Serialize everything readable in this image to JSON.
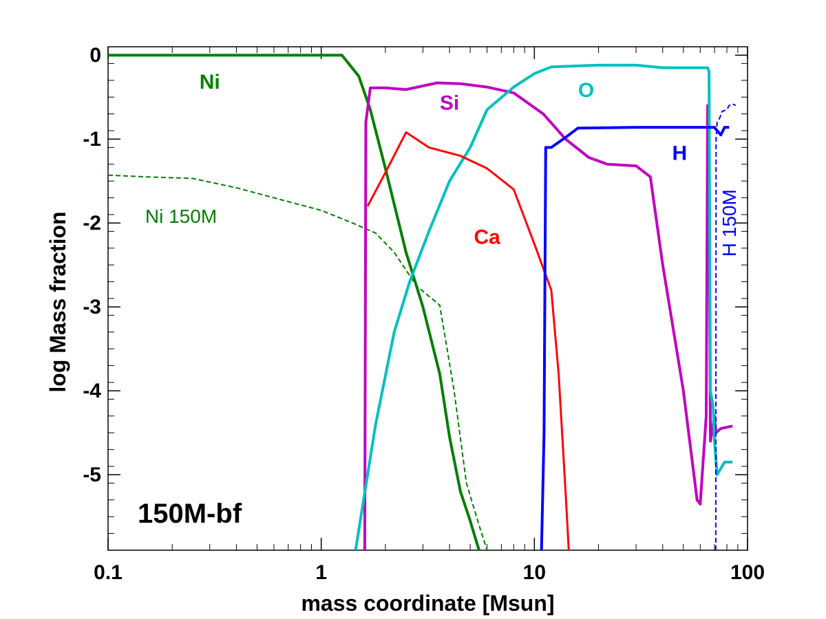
{
  "chart_data": {
    "type": "line",
    "title": "",
    "panel_label": "150M-bf",
    "xlabel": "mass coordinate [Msun]",
    "ylabel": "log Mass fraction",
    "xscale": "log",
    "xlim": [
      0.1,
      100
    ],
    "ylim": [
      -5.9,
      0.1
    ],
    "xticks": [
      0.1,
      1,
      10,
      100
    ],
    "xtick_labels": [
      "0.1",
      "1",
      "10",
      "100"
    ],
    "yticks": [
      0,
      -1,
      -2,
      -3,
      -4,
      -5
    ],
    "ytick_labels": [
      "0",
      "-1",
      "-2",
      "-3",
      "-4",
      "-5"
    ],
    "grid": false,
    "series": [
      {
        "name": "Ni",
        "label": "Ni",
        "color": "#007f00",
        "style": "solid",
        "width": 4,
        "label_at": [
          0.3,
          -0.4
        ],
        "label_style": "bold",
        "points": [
          [
            0.1,
            0
          ],
          [
            0.5,
            0
          ],
          [
            1.0,
            0
          ],
          [
            1.25,
            0
          ],
          [
            1.5,
            -0.25
          ],
          [
            1.7,
            -0.65
          ],
          [
            2.0,
            -1.35
          ],
          [
            2.5,
            -2.35
          ],
          [
            3.0,
            -3.0
          ],
          [
            3.6,
            -3.8
          ],
          [
            4.0,
            -4.55
          ],
          [
            4.5,
            -5.2
          ],
          [
            5.0,
            -5.55
          ],
          [
            5.5,
            -5.9
          ]
        ]
      },
      {
        "name": "Ni 150M",
        "label": "Ni 150M",
        "color": "#007f00",
        "style": "dashed",
        "width": 2,
        "label_at": [
          0.22,
          -2.0
        ],
        "label_style": "normal",
        "points": [
          [
            0.1,
            -1.43
          ],
          [
            0.15,
            -1.45
          ],
          [
            0.25,
            -1.47
          ],
          [
            0.4,
            -1.58
          ],
          [
            0.6,
            -1.7
          ],
          [
            1.0,
            -1.85
          ],
          [
            1.4,
            -2.0
          ],
          [
            1.8,
            -2.12
          ],
          [
            2.2,
            -2.35
          ],
          [
            2.8,
            -2.75
          ],
          [
            3.6,
            -2.98
          ],
          [
            4.2,
            -4.0
          ],
          [
            4.8,
            -5.1
          ],
          [
            5.5,
            -5.6
          ],
          [
            6.0,
            -5.9
          ]
        ]
      },
      {
        "name": "Si",
        "label": "Si",
        "color": "#c000c0",
        "style": "solid",
        "width": 4,
        "label_at": [
          4.0,
          -0.65
        ],
        "label_style": "bold",
        "points": [
          [
            1.6,
            -5.9
          ],
          [
            1.62,
            -0.8
          ],
          [
            1.7,
            -0.39
          ],
          [
            2.0,
            -0.39
          ],
          [
            2.5,
            -0.41
          ],
          [
            3.5,
            -0.33
          ],
          [
            4.5,
            -0.34
          ],
          [
            6.0,
            -0.38
          ],
          [
            8.0,
            -0.45
          ],
          [
            11,
            -0.7
          ],
          [
            14,
            -1.0
          ],
          [
            18,
            -1.22
          ],
          [
            22,
            -1.3
          ],
          [
            30,
            -1.32
          ],
          [
            35,
            -1.45
          ],
          [
            40,
            -2.5
          ],
          [
            50,
            -4.0
          ],
          [
            58,
            -5.3
          ],
          [
            60,
            -5.35
          ],
          [
            64,
            -4.3
          ],
          [
            65,
            -0.6
          ],
          [
            66,
            -1.5
          ],
          [
            67,
            -4.6
          ],
          [
            70,
            -4.3
          ],
          [
            71,
            -4.5
          ],
          [
            75,
            -4.45
          ],
          [
            85,
            -4.42
          ]
        ]
      },
      {
        "name": "O",
        "label": "O",
        "color": "#00c0c0",
        "style": "solid",
        "width": 4,
        "label_at": [
          17.5,
          -0.5
        ],
        "label_style": "bold",
        "points": [
          [
            1.45,
            -5.9
          ],
          [
            1.8,
            -4.4
          ],
          [
            2.2,
            -3.3
          ],
          [
            2.6,
            -2.7
          ],
          [
            3.2,
            -2.1
          ],
          [
            4.0,
            -1.5
          ],
          [
            5.0,
            -1.1
          ],
          [
            6.0,
            -0.65
          ],
          [
            8.0,
            -0.38
          ],
          [
            10,
            -0.22
          ],
          [
            12,
            -0.14
          ],
          [
            15,
            -0.13
          ],
          [
            20,
            -0.12
          ],
          [
            30,
            -0.12
          ],
          [
            40,
            -0.15
          ],
          [
            50,
            -0.15
          ],
          [
            65,
            -0.15
          ],
          [
            66,
            -0.2
          ],
          [
            67,
            -4.0
          ],
          [
            69,
            -4.2
          ],
          [
            70,
            -4.6
          ],
          [
            72,
            -5.0
          ],
          [
            78,
            -4.85
          ],
          [
            85,
            -4.85
          ]
        ]
      },
      {
        "name": "Ca",
        "label": "Ca",
        "color": "#ff0000",
        "style": "solid",
        "width": 3,
        "label_at": [
          6.0,
          -2.25
        ],
        "label_style": "bold",
        "points": [
          [
            1.65,
            -1.8
          ],
          [
            2.0,
            -1.4
          ],
          [
            2.5,
            -0.92
          ],
          [
            3.2,
            -1.1
          ],
          [
            4.5,
            -1.2
          ],
          [
            6.0,
            -1.35
          ],
          [
            8.0,
            -1.6
          ],
          [
            10,
            -2.25
          ],
          [
            12,
            -2.8
          ],
          [
            13,
            -3.8
          ],
          [
            14,
            -5.2
          ],
          [
            14.5,
            -5.9
          ]
        ]
      },
      {
        "name": "H",
        "label": "H",
        "color": "#0000ff",
        "style": "solid",
        "width": 4,
        "label_at": [
          48,
          -1.25
        ],
        "label_style": "bold",
        "points": [
          [
            10.8,
            -5.9
          ],
          [
            11.1,
            -4.5
          ],
          [
            11.3,
            -1.1
          ],
          [
            12,
            -1.1
          ],
          [
            14,
            -0.98
          ],
          [
            16,
            -0.87
          ],
          [
            30,
            -0.86
          ],
          [
            50,
            -0.86
          ],
          [
            65,
            -0.86
          ],
          [
            70,
            -0.86
          ],
          [
            72,
            -0.9
          ],
          [
            75,
            -0.95
          ],
          [
            78,
            -0.86
          ],
          [
            82,
            -0.86
          ]
        ]
      },
      {
        "name": "H 150M",
        "label": "H 150M",
        "color": "#0000ff",
        "style": "dashed",
        "width": 2,
        "label_at": [
          88,
          -2.0
        ],
        "label_style": "normal-vertical",
        "points": [
          [
            71,
            -5.9
          ],
          [
            71.2,
            -1.0
          ],
          [
            72,
            -0.8
          ],
          [
            74,
            -0.75
          ],
          [
            76,
            -0.67
          ],
          [
            80,
            -0.65
          ],
          [
            82,
            -0.6
          ],
          [
            85,
            -0.58
          ],
          [
            88,
            -0.6
          ]
        ]
      }
    ]
  }
}
